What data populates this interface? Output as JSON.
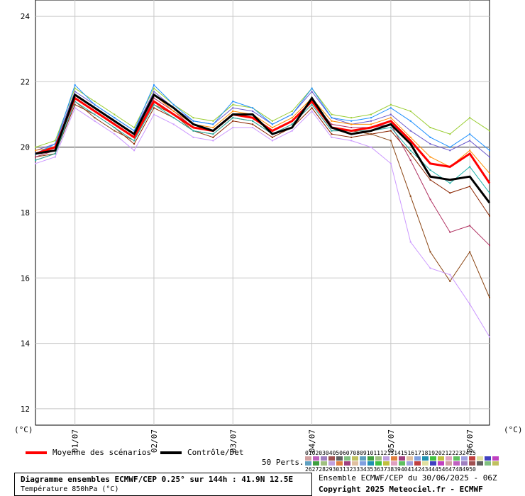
{
  "chart_data": {
    "type": "line",
    "x": [
      "30/06 12h",
      "30/06 18h",
      "01/07 00h",
      "01/07 06h",
      "01/07 12h",
      "01/07 18h",
      "02/07 00h",
      "02/07 06h",
      "02/07 12h",
      "02/07 18h",
      "03/07 00h",
      "03/07 06h",
      "03/07 12h",
      "03/07 18h",
      "04/07 00h",
      "04/07 06h",
      "04/07 12h",
      "04/07 18h",
      "05/07 00h",
      "05/07 06h",
      "05/07 12h",
      "05/07 18h",
      "06/07 00h",
      "06/07 06h"
    ],
    "x_ticks": [
      "01/07",
      "02/07",
      "03/07",
      "04/07",
      "05/07",
      "06/07"
    ],
    "y_ticks": [
      "12",
      "14",
      "16",
      "18",
      "20",
      "22",
      "24"
    ],
    "ylim": [
      11.5,
      24.5
    ],
    "y_unit_left": "(°C)",
    "y_unit_right": "(°C)",
    "grid": true,
    "series": [
      {
        "name": "Moyenne des scénarios",
        "color": "#ff0000",
        "values": [
          19.8,
          20.0,
          21.5,
          21.1,
          20.7,
          20.3,
          21.4,
          21.0,
          20.6,
          20.5,
          21.0,
          20.9,
          20.5,
          20.8,
          21.4,
          20.6,
          20.5,
          20.6,
          20.8,
          20.2,
          19.5,
          19.4,
          19.8,
          18.9
        ]
      },
      {
        "name": "Contrôle/Det",
        "color": "#000000",
        "values": [
          19.8,
          19.9,
          21.6,
          21.2,
          20.8,
          20.4,
          21.6,
          21.2,
          20.7,
          20.5,
          21.0,
          21.0,
          20.4,
          20.6,
          21.5,
          20.6,
          20.4,
          20.5,
          20.7,
          20.1,
          19.1,
          19.0,
          19.1,
          18.3
        ]
      },
      {
        "values": [
          19.6,
          19.8,
          21.3,
          21.0,
          20.6,
          20.1,
          21.2,
          20.9,
          20.5,
          20.3,
          20.8,
          20.7,
          20.3,
          20.6,
          21.2,
          20.4,
          20.3,
          20.4,
          20.5,
          19.8,
          19.0,
          18.6,
          18.8,
          17.9
        ],
        "color": "#8b2500"
      },
      {
        "values": [
          19.9,
          20.1,
          21.7,
          21.3,
          20.9,
          20.5,
          21.7,
          21.2,
          20.8,
          20.7,
          21.2,
          21.1,
          20.7,
          21.0,
          21.7,
          20.9,
          20.7,
          20.8,
          21.0,
          20.5,
          20.1,
          19.9,
          20.2,
          19.7
        ],
        "color": "#6a5acd"
      },
      {
        "values": [
          19.7,
          19.8,
          21.4,
          20.9,
          20.5,
          20.2,
          21.3,
          21.0,
          20.5,
          20.4,
          20.9,
          20.8,
          20.4,
          20.7,
          21.3,
          20.5,
          20.5,
          20.4,
          20.2,
          18.5,
          16.8,
          15.9,
          16.8,
          15.4
        ],
        "color": "#8b4513"
      },
      {
        "values": [
          19.5,
          19.7,
          21.2,
          20.8,
          20.4,
          19.9,
          21.0,
          20.7,
          20.3,
          20.2,
          20.6,
          20.6,
          20.2,
          20.5,
          21.1,
          20.3,
          20.2,
          20.0,
          19.5,
          17.1,
          16.3,
          16.1,
          15.2,
          14.2
        ],
        "color": "#cc99ff"
      },
      {
        "values": [
          20.0,
          20.2,
          21.8,
          21.4,
          21.0,
          20.6,
          21.8,
          21.3,
          20.9,
          20.8,
          21.3,
          21.2,
          20.8,
          21.1,
          21.8,
          21.0,
          20.9,
          21.0,
          21.3,
          21.1,
          20.6,
          20.4,
          20.9,
          20.5
        ],
        "color": "#9acd32"
      },
      {
        "values": [
          19.7,
          19.9,
          21.5,
          21.1,
          20.7,
          20.3,
          21.5,
          21.1,
          20.6,
          20.5,
          21.0,
          20.9,
          20.5,
          20.8,
          21.4,
          20.7,
          20.6,
          20.6,
          20.7,
          19.6,
          18.4,
          17.4,
          17.6,
          17.0
        ],
        "color": "#b03060"
      },
      {
        "values": [
          19.6,
          19.8,
          21.4,
          21.0,
          20.6,
          20.2,
          21.3,
          20.9,
          20.5,
          20.4,
          20.9,
          20.8,
          20.4,
          20.7,
          21.3,
          20.5,
          20.5,
          20.5,
          20.6,
          19.9,
          19.3,
          18.9,
          19.4,
          18.6
        ],
        "color": "#20b2aa"
      },
      {
        "values": [
          19.9,
          20.0,
          21.6,
          21.2,
          20.8,
          20.4,
          21.6,
          21.1,
          20.7,
          20.6,
          21.1,
          21.0,
          20.6,
          20.9,
          21.5,
          20.8,
          20.7,
          20.7,
          20.9,
          20.3,
          19.7,
          19.4,
          19.9,
          19.2
        ],
        "color": "#ff8c00"
      },
      {
        "values": [
          19.8,
          20.1,
          21.9,
          21.3,
          20.9,
          20.5,
          21.9,
          21.3,
          20.8,
          20.7,
          21.4,
          21.2,
          20.7,
          21.0,
          21.8,
          20.9,
          20.8,
          20.9,
          21.2,
          20.8,
          20.3,
          20.0,
          20.4,
          19.9
        ],
        "color": "#1e90ff"
      }
    ]
  },
  "legend": {
    "mean_label": "Moyenne des scénarios",
    "control_label": "Contrôle/Det",
    "perts_label": "50 Perts.",
    "perts_top": "01020304050607080910111213141516171819202122232425",
    "perts_bottom": "26272829303132333435363738394041424344454647484950"
  },
  "footer": {
    "title": "Diagramme ensembles ECMWF/CEP 0.25° sur 144h : 41.9N 12.5E",
    "subtitle": "Température 850hPa (°C)",
    "run": "Ensemble ECMWF/CEP du 30/06/2025 - 06Z",
    "copyright": "Copyright 2025 Meteociel.fr - ECMWF"
  }
}
